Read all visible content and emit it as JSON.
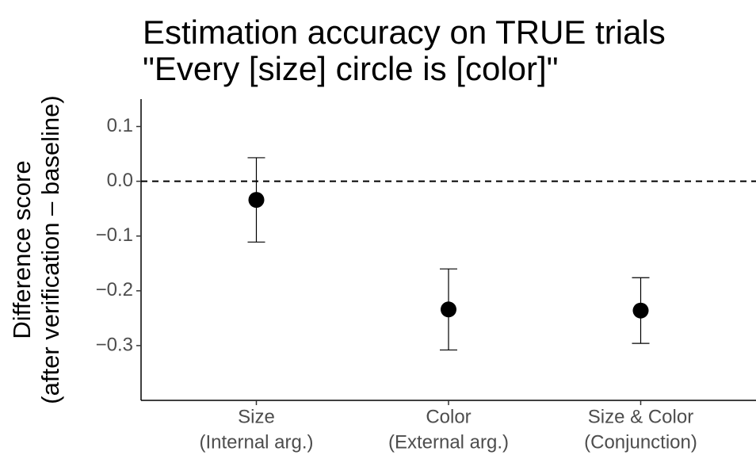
{
  "chart_data": {
    "type": "pointrange",
    "title": [
      "Estimation accuracy on TRUE trials",
      "\"Every [size] circle is [color]\""
    ],
    "y_label": [
      "Difference score",
      "(after verification – baseline)"
    ],
    "categories": [
      [
        "Size",
        "(Internal arg.)"
      ],
      [
        "Color",
        "(External arg.)"
      ],
      [
        "Size & Color",
        "(Conjunction)"
      ]
    ],
    "values": [
      -0.034,
      -0.234,
      -0.236
    ],
    "error": [
      0.077,
      0.074,
      0.06
    ],
    "color": "#000000",
    "reference_line": 0,
    "ylim": [
      -0.4,
      0.15
    ],
    "yticks": [
      0.1,
      {
        "value": 0,
        "label": "0.0"
      },
      {
        "value": -0.1,
        "label": "−0.1"
      },
      {
        "value": -0.2,
        "label": "−0.2"
      },
      {
        "value": -0.3,
        "label": "−0.3"
      }
    ]
  }
}
